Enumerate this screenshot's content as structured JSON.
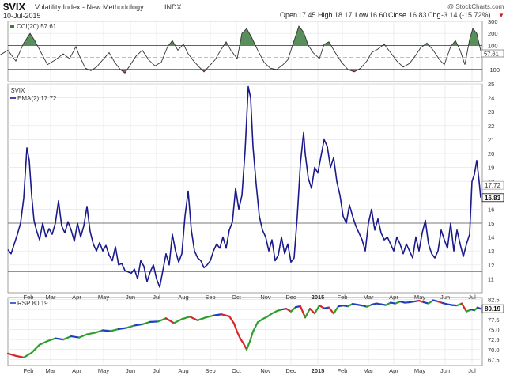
{
  "header": {
    "symbol": "$VIX",
    "name": "Volatility Index - New Methodology",
    "exchange": "INDX",
    "date": "10-Jul-2015",
    "watermark": "@ StockCharts.com",
    "quote": {
      "open_label": "Open",
      "open": "17.45",
      "high_label": "High",
      "high": "18.17",
      "low_label": "Low",
      "low": "16.60",
      "close_label": "Close",
      "close": "16.83",
      "chg_label": "Chg",
      "chg": "-3.14 (-15.72%)",
      "chg_arrow": "▼"
    }
  },
  "colors": {
    "line": "#1a1a8c",
    "cci_line": "#333333",
    "cci_fill_over": "#3d7a3d",
    "cci_fill_under": "#9a3030",
    "support_red": "#ff3333",
    "hline": "#555555",
    "grid": "#e6e6e6",
    "rsp_up": "#2ca02c",
    "rsp_down": "#d62728",
    "rsp_neutral": "#1f3fbf"
  },
  "x_axis": {
    "labels": [
      "Feb",
      "Mar",
      "Apr",
      "May",
      "Jun",
      "Jul",
      "Aug",
      "Sep",
      "Oct",
      "Nov",
      "Dec",
      "2015",
      "Feb",
      "Mar",
      "Apr",
      "May",
      "Jun",
      "Jul"
    ],
    "bold_index": 11
  },
  "chart_data": [
    {
      "type": "area",
      "panel": "cci",
      "legend": "CCI(20) 57.61",
      "last_value": 57.61,
      "last_label": "57.61",
      "ylim": [
        -200,
        300
      ],
      "yticks": [
        300,
        200,
        100,
        -100
      ],
      "ref_lines": [
        100,
        -100
      ],
      "points": [
        [
          0,
          20
        ],
        [
          10,
          60
        ],
        [
          20,
          -30
        ],
        [
          30,
          120
        ],
        [
          38,
          200
        ],
        [
          44,
          140
        ],
        [
          52,
          40
        ],
        [
          60,
          -60
        ],
        [
          70,
          -20
        ],
        [
          80,
          30
        ],
        [
          88,
          -10
        ],
        [
          96,
          90
        ],
        [
          100,
          20
        ],
        [
          108,
          -90
        ],
        [
          115,
          -110
        ],
        [
          122,
          -80
        ],
        [
          130,
          -20
        ],
        [
          138,
          40
        ],
        [
          145,
          -40
        ],
        [
          152,
          -100
        ],
        [
          158,
          -130
        ],
        [
          165,
          -60
        ],
        [
          172,
          10
        ],
        [
          180,
          60
        ],
        [
          188,
          -20
        ],
        [
          196,
          -70
        ],
        [
          204,
          -40
        ],
        [
          212,
          90
        ],
        [
          218,
          140
        ],
        [
          225,
          60
        ],
        [
          232,
          110
        ],
        [
          238,
          30
        ],
        [
          245,
          -30
        ],
        [
          252,
          -80
        ],
        [
          258,
          -120
        ],
        [
          265,
          -70
        ],
        [
          272,
          -20
        ],
        [
          280,
          70
        ],
        [
          286,
          130
        ],
        [
          292,
          60
        ],
        [
          300,
          -10
        ],
        [
          306,
          200
        ],
        [
          312,
          240
        ],
        [
          318,
          170
        ],
        [
          326,
          60
        ],
        [
          334,
          -40
        ],
        [
          342,
          -90
        ],
        [
          350,
          -100
        ],
        [
          358,
          -60
        ],
        [
          364,
          -20
        ],
        [
          372,
          140
        ],
        [
          378,
          260
        ],
        [
          384,
          210
        ],
        [
          390,
          100
        ],
        [
          396,
          40
        ],
        [
          404,
          -10
        ],
        [
          410,
          110
        ],
        [
          416,
          130
        ],
        [
          424,
          40
        ],
        [
          432,
          -40
        ],
        [
          440,
          -100
        ],
        [
          448,
          -120
        ],
        [
          456,
          -90
        ],
        [
          464,
          -30
        ],
        [
          470,
          40
        ],
        [
          478,
          70
        ],
        [
          486,
          110
        ],
        [
          494,
          40
        ],
        [
          502,
          -30
        ],
        [
          510,
          -80
        ],
        [
          518,
          -50
        ],
        [
          526,
          20
        ],
        [
          532,
          80
        ],
        [
          540,
          120
        ],
        [
          548,
          60
        ],
        [
          556,
          -20
        ],
        [
          562,
          -60
        ],
        [
          570,
          90
        ],
        [
          576,
          140
        ],
        [
          582,
          60
        ],
        [
          588,
          -60
        ],
        [
          594,
          150
        ],
        [
          598,
          240
        ],
        [
          603,
          200
        ],
        [
          608,
          57.61
        ]
      ]
    },
    {
      "type": "line",
      "panel": "price",
      "legend_symbol": "$VIX",
      "legend_ema": "EMA(2) 17.72",
      "ylim": [
        10,
        25
      ],
      "yticks": [
        25,
        24,
        23,
        22,
        21,
        20,
        19,
        18,
        17,
        16,
        15,
        14,
        13,
        12,
        11
      ],
      "hline": 15,
      "support_line": 11.5,
      "last_close": 16.83,
      "last_close_label": "16.83",
      "last_ema": 17.72,
      "last_ema_label": "17.72",
      "points": [
        [
          10,
          13.1
        ],
        [
          14,
          12.8
        ],
        [
          18,
          13.5
        ],
        [
          22,
          14.2
        ],
        [
          26,
          15.0
        ],
        [
          30,
          16.8
        ],
        [
          34,
          20.4
        ],
        [
          37,
          19.5
        ],
        [
          40,
          17.0
        ],
        [
          43,
          15.2
        ],
        [
          46,
          14.5
        ],
        [
          50,
          13.8
        ],
        [
          54,
          15.0
        ],
        [
          58,
          14.0
        ],
        [
          62,
          14.6
        ],
        [
          66,
          14.2
        ],
        [
          70,
          15.0
        ],
        [
          74,
          16.6
        ],
        [
          78,
          14.8
        ],
        [
          82,
          14.3
        ],
        [
          86,
          15.1
        ],
        [
          90,
          14.5
        ],
        [
          94,
          13.7
        ],
        [
          98,
          15.0
        ],
        [
          102,
          14.0
        ],
        [
          106,
          14.8
        ],
        [
          110,
          16.2
        ],
        [
          114,
          14.4
        ],
        [
          118,
          13.5
        ],
        [
          122,
          13.0
        ],
        [
          126,
          13.6
        ],
        [
          130,
          13.0
        ],
        [
          134,
          13.4
        ],
        [
          138,
          12.7
        ],
        [
          142,
          12.3
        ],
        [
          146,
          13.3
        ],
        [
          150,
          12.0
        ],
        [
          154,
          12.1
        ],
        [
          158,
          11.6
        ],
        [
          162,
          11.5
        ],
        [
          166,
          11.4
        ],
        [
          170,
          11.7
        ],
        [
          174,
          11.0
        ],
        [
          178,
          12.3
        ],
        [
          182,
          11.9
        ],
        [
          186,
          10.8
        ],
        [
          190,
          11.5
        ],
        [
          194,
          12.0
        ],
        [
          198,
          11.0
        ],
        [
          202,
          10.4
        ],
        [
          206,
          11.6
        ],
        [
          210,
          12.8
        ],
        [
          214,
          12.0
        ],
        [
          218,
          14.2
        ],
        [
          222,
          13.0
        ],
        [
          226,
          12.2
        ],
        [
          230,
          12.8
        ],
        [
          234,
          15.5
        ],
        [
          238,
          17.3
        ],
        [
          242,
          14.5
        ],
        [
          246,
          13.0
        ],
        [
          250,
          12.5
        ],
        [
          254,
          12.3
        ],
        [
          258,
          11.8
        ],
        [
          262,
          12.0
        ],
        [
          266,
          12.3
        ],
        [
          270,
          13.0
        ],
        [
          274,
          13.5
        ],
        [
          278,
          13.2
        ],
        [
          282,
          14.0
        ],
        [
          286,
          13.2
        ],
        [
          290,
          14.5
        ],
        [
          294,
          15.1
        ],
        [
          298,
          17.5
        ],
        [
          302,
          16.0
        ],
        [
          306,
          17.0
        ],
        [
          310,
          20.2
        ],
        [
          314,
          24.8
        ],
        [
          317,
          24.0
        ],
        [
          320,
          20.5
        ],
        [
          324,
          17.8
        ],
        [
          328,
          15.5
        ],
        [
          332,
          14.5
        ],
        [
          336,
          14.0
        ],
        [
          340,
          13.0
        ],
        [
          344,
          13.8
        ],
        [
          348,
          12.3
        ],
        [
          352,
          12.7
        ],
        [
          356,
          14.0
        ],
        [
          360,
          12.8
        ],
        [
          364,
          13.5
        ],
        [
          368,
          12.2
        ],
        [
          372,
          12.5
        ],
        [
          376,
          15.5
        ],
        [
          380,
          19.3
        ],
        [
          384,
          21.5
        ],
        [
          386,
          20.0
        ],
        [
          390,
          18.2
        ],
        [
          394,
          17.5
        ],
        [
          398,
          19.0
        ],
        [
          402,
          18.6
        ],
        [
          406,
          19.8
        ],
        [
          410,
          21.0
        ],
        [
          414,
          20.5
        ],
        [
          418,
          19.0
        ],
        [
          422,
          19.7
        ],
        [
          426,
          18.0
        ],
        [
          430,
          17.0
        ],
        [
          434,
          15.5
        ],
        [
          438,
          15.0
        ],
        [
          442,
          16.3
        ],
        [
          446,
          15.5
        ],
        [
          450,
          14.8
        ],
        [
          454,
          14.3
        ],
        [
          458,
          13.8
        ],
        [
          462,
          13.0
        ],
        [
          466,
          15.0
        ],
        [
          470,
          16.0
        ],
        [
          474,
          14.5
        ],
        [
          478,
          15.3
        ],
        [
          482,
          14.3
        ],
        [
          486,
          13.8
        ],
        [
          490,
          14.0
        ],
        [
          494,
          13.5
        ],
        [
          498,
          13.0
        ],
        [
          502,
          14.0
        ],
        [
          506,
          13.5
        ],
        [
          510,
          12.8
        ],
        [
          514,
          13.5
        ],
        [
          518,
          13.0
        ],
        [
          522,
          12.5
        ],
        [
          526,
          14.0
        ],
        [
          530,
          13.0
        ],
        [
          534,
          14.3
        ],
        [
          538,
          15.2
        ],
        [
          542,
          13.5
        ],
        [
          546,
          12.8
        ],
        [
          550,
          12.5
        ],
        [
          554,
          13.0
        ],
        [
          558,
          14.5
        ],
        [
          562,
          13.8
        ],
        [
          566,
          13.2
        ],
        [
          570,
          15.0
        ],
        [
          574,
          13.0
        ],
        [
          578,
          14.5
        ],
        [
          582,
          13.5
        ],
        [
          586,
          12.6
        ],
        [
          590,
          13.5
        ],
        [
          594,
          14.2
        ],
        [
          597,
          18.0
        ],
        [
          600,
          18.5
        ],
        [
          603,
          19.5
        ],
        [
          606,
          18.0
        ],
        [
          608,
          16.83
        ]
      ]
    },
    {
      "type": "line",
      "panel": "rsp",
      "legend": "RSP 80.19",
      "last_value": 80.19,
      "last_label": "80.19",
      "ylim": [
        66,
        83
      ],
      "yticks": [
        82.5,
        80.0,
        77.5,
        75.0,
        72.5,
        70.0,
        67.5
      ],
      "points": [
        [
          10,
          69.0
        ],
        [
          20,
          68.4
        ],
        [
          30,
          68.0
        ],
        [
          40,
          69.2
        ],
        [
          50,
          71.2
        ],
        [
          60,
          72.1
        ],
        [
          70,
          72.8
        ],
        [
          80,
          72.5
        ],
        [
          90,
          73.3
        ],
        [
          100,
          73.0
        ],
        [
          110,
          73.8
        ],
        [
          120,
          74.2
        ],
        [
          130,
          74.8
        ],
        [
          140,
          74.6
        ],
        [
          150,
          75.1
        ],
        [
          160,
          75.4
        ],
        [
          170,
          76.0
        ],
        [
          180,
          76.3
        ],
        [
          190,
          76.9
        ],
        [
          200,
          77.0
        ],
        [
          210,
          77.8
        ],
        [
          220,
          76.6
        ],
        [
          230,
          77.6
        ],
        [
          240,
          78.2
        ],
        [
          250,
          77.3
        ],
        [
          260,
          78.0
        ],
        [
          270,
          78.5
        ],
        [
          280,
          78.8
        ],
        [
          290,
          78.3
        ],
        [
          296,
          76.5
        ],
        [
          300,
          74.4
        ],
        [
          304,
          72.7
        ],
        [
          308,
          71.5
        ],
        [
          312,
          70.0
        ],
        [
          316,
          72.0
        ],
        [
          320,
          74.5
        ],
        [
          326,
          76.8
        ],
        [
          332,
          77.6
        ],
        [
          338,
          78.2
        ],
        [
          344,
          79.0
        ],
        [
          350,
          79.6
        ],
        [
          356,
          80.0
        ],
        [
          362,
          80.2
        ],
        [
          368,
          79.5
        ],
        [
          374,
          80.6
        ],
        [
          380,
          80.8
        ],
        [
          386,
          78.0
        ],
        [
          392,
          80.2
        ],
        [
          398,
          79.0
        ],
        [
          404,
          81.0
        ],
        [
          410,
          80.3
        ],
        [
          416,
          80.5
        ],
        [
          422,
          79.0
        ],
        [
          428,
          80.8
        ],
        [
          434,
          81.0
        ],
        [
          440,
          80.8
        ],
        [
          446,
          81.4
        ],
        [
          452,
          81.2
        ],
        [
          458,
          81.0
        ],
        [
          464,
          80.7
        ],
        [
          470,
          81.2
        ],
        [
          476,
          81.5
        ],
        [
          482,
          81.3
        ],
        [
          488,
          81.1
        ],
        [
          494,
          81.7
        ],
        [
          500,
          81.5
        ],
        [
          506,
          82.0
        ],
        [
          512,
          81.7
        ],
        [
          518,
          81.8
        ],
        [
          524,
          82.0
        ],
        [
          530,
          82.2
        ],
        [
          536,
          81.8
        ],
        [
          542,
          81.5
        ],
        [
          548,
          82.3
        ],
        [
          554,
          82.0
        ],
        [
          560,
          81.6
        ],
        [
          566,
          81.3
        ],
        [
          572,
          81.1
        ],
        [
          578,
          81.0
        ],
        [
          584,
          81.5
        ],
        [
          590,
          79.5
        ],
        [
          596,
          80.0
        ],
        [
          600,
          79.8
        ],
        [
          604,
          80.5
        ],
        [
          608,
          80.19
        ]
      ]
    }
  ]
}
